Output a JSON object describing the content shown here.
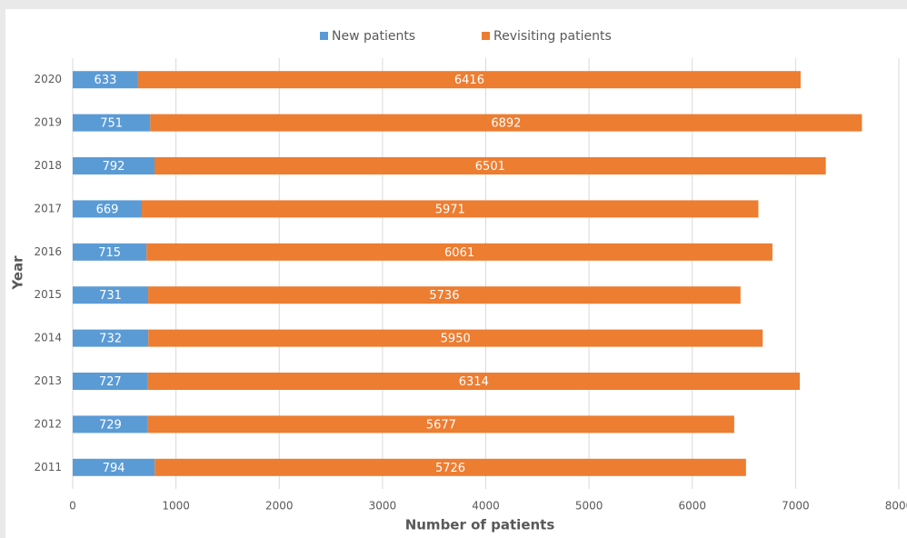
{
  "chart_data": {
    "type": "stacked-barh",
    "categories": [
      "2011",
      "2012",
      "2013",
      "2014",
      "2015",
      "2016",
      "2017",
      "2018",
      "2019",
      "2020"
    ],
    "series": [
      {
        "name": "New patients",
        "color": "#5b9bd5",
        "values": [
          794,
          729,
          727,
          732,
          731,
          715,
          669,
          792,
          751,
          633
        ]
      },
      {
        "name": "Revisiting patients",
        "color": "#ed7d31",
        "values": [
          5726,
          5677,
          6314,
          5950,
          5736,
          6061,
          5971,
          6501,
          6892,
          6416
        ]
      }
    ],
    "xlabel": "Number of patients",
    "ylabel": "Year",
    "xlim": [
      0,
      8000
    ],
    "xticks": [
      0,
      1000,
      2000,
      3000,
      4000,
      5000,
      6000,
      7000,
      8000
    ],
    "grid": true,
    "legend": "top"
  }
}
